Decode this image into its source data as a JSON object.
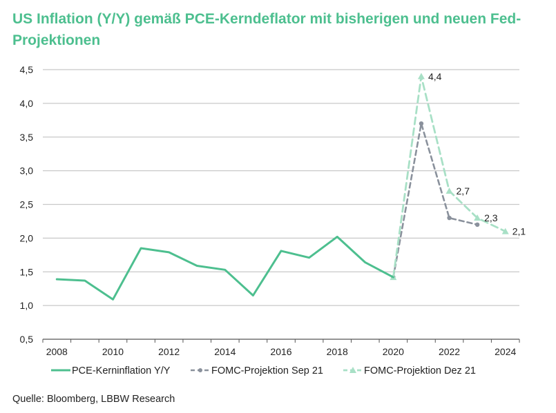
{
  "title": "US Inflation (Y/Y) gemäß PCE-Kerndeflator mit bisherigen und neuen Fed-Projektionen",
  "source": "Quelle: Bloomberg, LBBW Research",
  "colors": {
    "pce": "#4dbf8f",
    "sep": "#8a919c",
    "dez": "#a8e0c6",
    "grid": "#c8c8c8",
    "axis": "#555555"
  },
  "chart_data": {
    "type": "line",
    "x_tick_labels": [
      "2008",
      "2010",
      "2012",
      "2014",
      "2016",
      "2018",
      "2020",
      "2022",
      "2024"
    ],
    "y_tick_labels": [
      "0,5",
      "1,0",
      "1,5",
      "2,0",
      "2,5",
      "3,0",
      "3,5",
      "4,0",
      "4,5"
    ],
    "xlim": [
      2007.5,
      2024.5
    ],
    "ylim": [
      0.5,
      4.5
    ],
    "grid": true,
    "legend_position": "bottom",
    "series": [
      {
        "name": "PCE-Kerninflation Y/Y",
        "style": "solid",
        "x": [
          2008,
          2009,
          2010,
          2011,
          2012,
          2013,
          2014,
          2015,
          2016,
          2017,
          2018,
          2019,
          2020
        ],
        "values": [
          1.39,
          1.37,
          1.09,
          1.85,
          1.79,
          1.59,
          1.53,
          1.15,
          1.81,
          1.71,
          2.02,
          1.64,
          1.42
        ]
      },
      {
        "name": "FOMC-Projektion Sep 21",
        "style": "dashed-dot-marker",
        "x": [
          2020,
          2021,
          2022,
          2023
        ],
        "values": [
          1.42,
          3.7,
          2.3,
          2.2
        ]
      },
      {
        "name": "FOMC-Projektion Dez 21",
        "style": "dashed-triangle-marker",
        "x": [
          2020,
          2021,
          2022,
          2023,
          2024
        ],
        "values": [
          1.42,
          4.4,
          2.7,
          2.3,
          2.1
        ],
        "data_labels": [
          "",
          "4,4",
          "2,7",
          "2,3",
          "2,1"
        ]
      }
    ]
  }
}
